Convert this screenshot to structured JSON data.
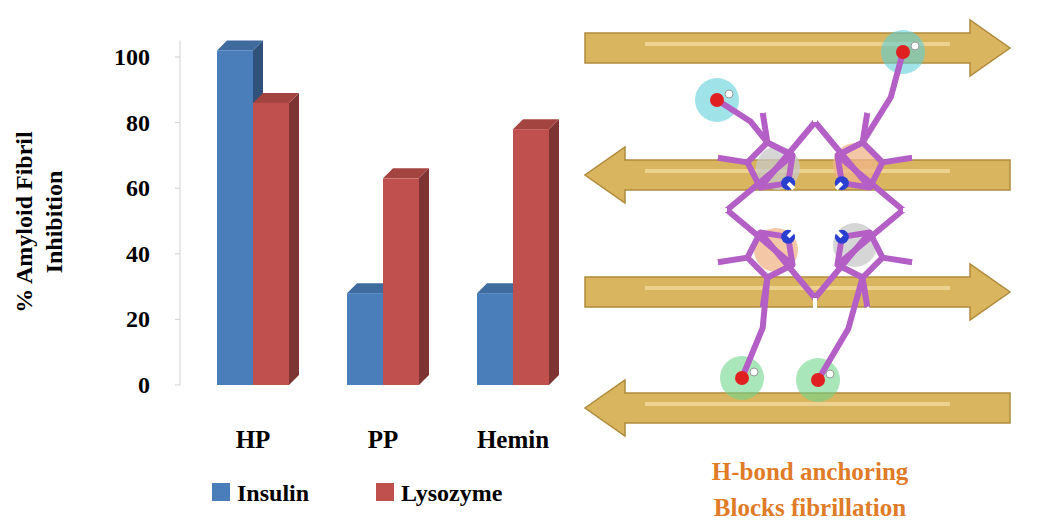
{
  "chart_data": {
    "type": "bar",
    "y_label": "% Amyloid Fibril Inhibition",
    "categories": [
      "HP",
      "PP",
      "Hemin"
    ],
    "series": [
      {
        "name": "Insulin",
        "color": "#4a7ebb",
        "values": [
          102,
          28,
          28
        ]
      },
      {
        "name": "Lysozyme",
        "color": "#c0504d",
        "values": [
          86,
          63,
          78
        ]
      }
    ],
    "ylim": [
      0,
      105
    ],
    "yticks": [
      0,
      20,
      40,
      60,
      80,
      100
    ],
    "grid": false,
    "legend": "bottom",
    "annotations": [
      "H-bond anchoring",
      "Blocks fibrillation"
    ]
  }
}
